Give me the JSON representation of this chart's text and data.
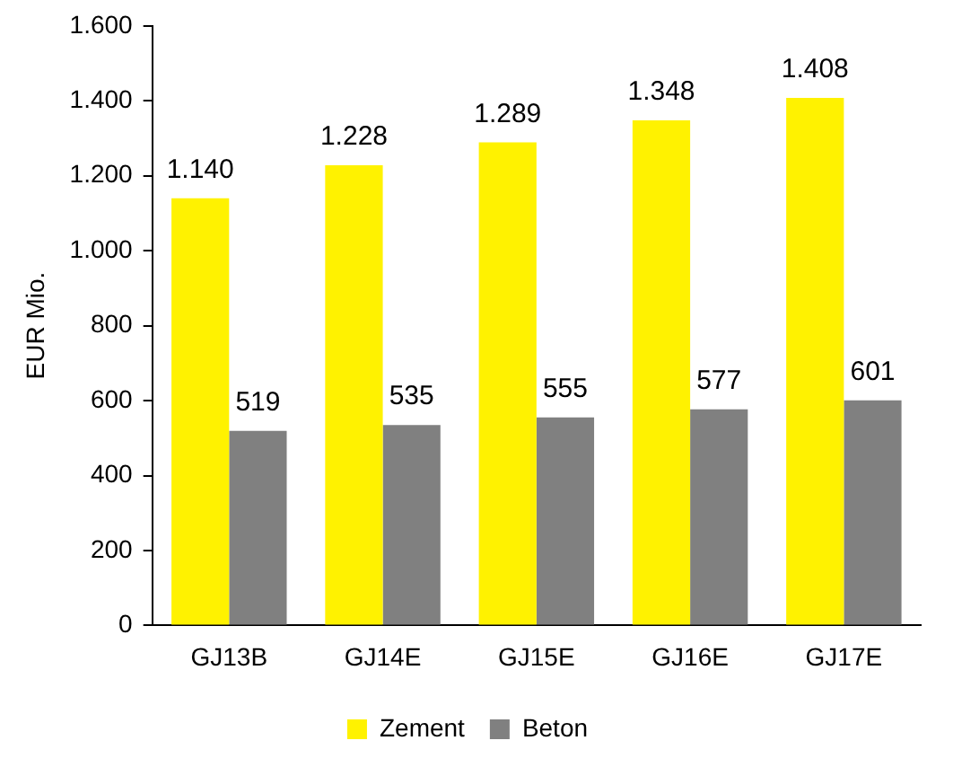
{
  "chart_data": {
    "type": "bar",
    "ylabel": "EUR Mio.",
    "categories": [
      "GJ13B",
      "GJ14E",
      "GJ15E",
      "GJ16E",
      "GJ17E"
    ],
    "series": [
      {
        "name": "Zement",
        "color": "#fff200",
        "values": [
          1140,
          1228,
          1289,
          1348,
          1408
        ],
        "value_labels": [
          "1.140",
          "1.228",
          "1.289",
          "1.348",
          "1.408"
        ]
      },
      {
        "name": "Beton",
        "color": "#808080",
        "values": [
          519,
          535,
          555,
          577,
          601
        ],
        "value_labels": [
          "519",
          "535",
          "555",
          "577",
          "601"
        ]
      }
    ],
    "ylim": [
      0,
      1600
    ],
    "yticks": [
      0,
      200,
      400,
      600,
      800,
      {
        "value": 1000,
        "label": "1.000"
      },
      {
        "value": 1200,
        "label": "1.200"
      },
      {
        "value": 1400,
        "label": "1.400"
      },
      {
        "value": 1600,
        "label": "1.600"
      }
    ],
    "grid": false,
    "legend": "bottom"
  }
}
